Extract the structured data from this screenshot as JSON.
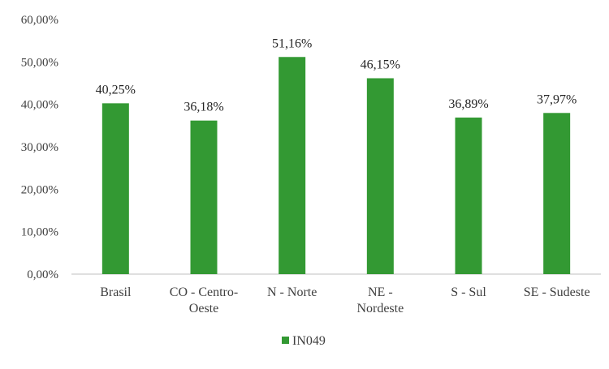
{
  "chart_data": {
    "type": "bar",
    "categories": [
      [
        "Brasil"
      ],
      [
        "CO - Centro-",
        "Oeste"
      ],
      [
        "N - Norte"
      ],
      [
        "NE -",
        "Nordeste"
      ],
      [
        "S - Sul"
      ],
      [
        "SE - Sudeste"
      ]
    ],
    "series": [
      {
        "name": "IN049",
        "values": [
          40.25,
          36.18,
          51.16,
          46.15,
          36.89,
          37.97
        ],
        "labels": [
          "40,25%",
          "36,18%",
          "51,16%",
          "46,15%",
          "36,89%",
          "37,97%"
        ],
        "color": "#339933"
      }
    ],
    "yticks": [
      0,
      10,
      20,
      30,
      40,
      50,
      60
    ],
    "ytick_labels": [
      "0,00%",
      "10,00%",
      "20,00%",
      "30,00%",
      "40,00%",
      "50,00%",
      "60,00%"
    ],
    "ylim": [
      0,
      60
    ],
    "grid": false,
    "legend": "bottom"
  }
}
